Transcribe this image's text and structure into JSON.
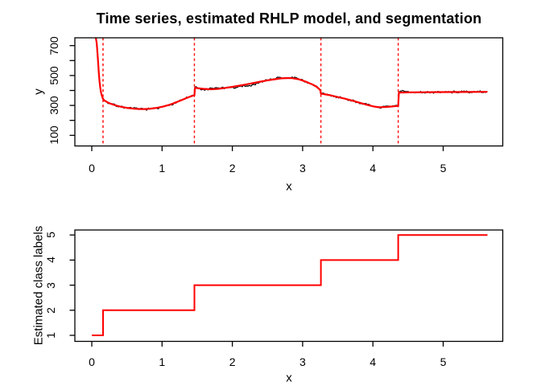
{
  "figure": {
    "title": "Time series, estimated RHLP model, and segmentation",
    "background": "#ffffff"
  },
  "colors": {
    "model_line": "#ff0000",
    "data_line": "#000000",
    "changepoint_line": "#ff0000",
    "step_line": "#ff0000",
    "axis": "#000000",
    "text": "#000000"
  },
  "chart_data": [
    {
      "type": "line",
      "name": "time-series-with-rhlp-model",
      "title": "Time series, estimated RHLP model, and segmentation",
      "xlabel": "x",
      "ylabel": "y",
      "xlim": [
        -0.24,
        5.85
      ],
      "ylim": [
        29,
        752
      ],
      "x_ticks": [
        "0",
        "1",
        "2",
        "3",
        "4",
        "5"
      ],
      "x_tick_values": [
        0,
        1,
        2,
        3,
        4,
        5
      ],
      "y_tick_values": [
        100,
        200,
        300,
        400,
        500,
        600,
        700
      ],
      "y_tick_labels": [
        "100",
        "",
        "300",
        "",
        "500",
        "",
        "700"
      ],
      "grid": false,
      "legend": null,
      "changepoints": [
        0.16,
        1.46,
        3.26,
        4.36
      ],
      "series": [
        {
          "name": "estimated RHLP model",
          "color": "#ff0000",
          "style": "solid",
          "points": [
            [
              0.055,
              760
            ],
            [
              0.07,
              718
            ],
            [
              0.08,
              655
            ],
            [
              0.09,
              588
            ],
            [
              0.1,
              520
            ],
            [
              0.11,
              462
            ],
            [
              0.12,
              420
            ],
            [
              0.13,
              392
            ],
            [
              0.14,
              371
            ],
            [
              0.15,
              356
            ],
            [
              0.16,
              344
            ],
            [
              0.18,
              333
            ],
            [
              0.2,
              327
            ],
            [
              0.25,
              315
            ],
            [
              0.3,
              306
            ],
            [
              0.35,
              299
            ],
            [
              0.4,
              293
            ],
            [
              0.45,
              288
            ],
            [
              0.5,
              284
            ],
            [
              0.55,
              281
            ],
            [
              0.6,
              278
            ],
            [
              0.65,
              277
            ],
            [
              0.7,
              276
            ],
            [
              0.75,
              276
            ],
            [
              0.8,
              277
            ],
            [
              0.85,
              279
            ],
            [
              0.9,
              282
            ],
            [
              0.95,
              286
            ],
            [
              1.0,
              291
            ],
            [
              1.05,
              297
            ],
            [
              1.1,
              304
            ],
            [
              1.15,
              312
            ],
            [
              1.2,
              321
            ],
            [
              1.25,
              330
            ],
            [
              1.3,
              340
            ],
            [
              1.35,
              350
            ],
            [
              1.4,
              359
            ],
            [
              1.44,
              365
            ],
            [
              1.46,
              368
            ],
            [
              1.468,
              418
            ],
            [
              1.5,
              416
            ],
            [
              1.55,
              413
            ],
            [
              1.6,
              410
            ],
            [
              1.7,
              408
            ],
            [
              1.8,
              411
            ],
            [
              1.9,
              417
            ],
            [
              2.0,
              424
            ],
            [
              2.1,
              432
            ],
            [
              2.2,
              441
            ],
            [
              2.3,
              450
            ],
            [
              2.4,
              459
            ],
            [
              2.5,
              468
            ],
            [
              2.6,
              475
            ],
            [
              2.7,
              481
            ],
            [
              2.78,
              483
            ],
            [
              2.85,
              482
            ],
            [
              2.95,
              474
            ],
            [
              3.0,
              466
            ],
            [
              3.05,
              458
            ],
            [
              3.1,
              448
            ],
            [
              3.15,
              438
            ],
            [
              3.2,
              424
            ],
            [
              3.25,
              403
            ],
            [
              3.26,
              379
            ],
            [
              3.3,
              376
            ],
            [
              3.4,
              367
            ],
            [
              3.5,
              356
            ],
            [
              3.6,
              345
            ],
            [
              3.7,
              333
            ],
            [
              3.8,
              320
            ],
            [
              3.9,
              306
            ],
            [
              4.0,
              294
            ],
            [
              4.05,
              290
            ],
            [
              4.1,
              288
            ],
            [
              4.2,
              290
            ],
            [
              4.3,
              294
            ],
            [
              4.36,
              297
            ],
            [
              4.37,
              386
            ],
            [
              4.5,
              387
            ],
            [
              4.7,
              388
            ],
            [
              5.0,
              389
            ],
            [
              5.3,
              390
            ],
            [
              5.63,
              391
            ]
          ]
        },
        {
          "name": "observed time series",
          "color": "#000000",
          "style": "noisy",
          "derived_from": "estimated RHLP model",
          "noise": {
            "seed": 7,
            "amplitude": 5,
            "step": 0.008,
            "x_start": 0.045,
            "x_end": 5.63,
            "bumps": [
              [
                0.95,
                0.08,
                -4
              ],
              [
                1.47,
                0.02,
                6
              ],
              [
                1.56,
                0.05,
                -7
              ],
              [
                1.78,
                0.07,
                5
              ],
              [
                2.03,
                0.06,
                -8
              ],
              [
                2.26,
                0.07,
                -14
              ],
              [
                2.62,
                0.08,
                5
              ],
              [
                2.88,
                0.05,
                6
              ],
              [
                4.43,
                0.05,
                9
              ]
            ]
          }
        }
      ]
    },
    {
      "type": "step",
      "name": "estimated-class-labels",
      "xlabel": "x",
      "ylabel": "Estimated class labels",
      "x_ticks": [
        "0",
        "1",
        "2",
        "3",
        "4",
        "5"
      ],
      "x_tick_values": [
        0,
        1,
        2,
        3,
        4,
        5
      ],
      "y_ticks": [
        "1",
        "2",
        "3",
        "4",
        "5"
      ],
      "y_tick_values": [
        1,
        2,
        3,
        4,
        5
      ],
      "grid": false,
      "color": "#ff0000",
      "segments": [
        {
          "label": 1,
          "x_start": 0.0,
          "x_end": 0.16
        },
        {
          "label": 2,
          "x_start": 0.16,
          "x_end": 1.46
        },
        {
          "label": 3,
          "x_start": 1.46,
          "x_end": 3.26
        },
        {
          "label": 4,
          "x_start": 3.26,
          "x_end": 4.36
        },
        {
          "label": 5,
          "x_start": 4.36,
          "x_end": 5.63
        }
      ]
    }
  ]
}
